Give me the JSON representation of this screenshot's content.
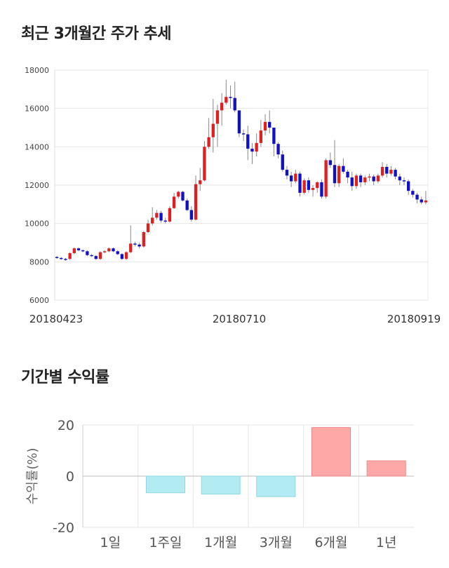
{
  "sections": {
    "price_title": "최근 3개월간 주가 추세",
    "return_title": "기간별 수익률"
  },
  "colors": {
    "up": "#e02020",
    "down": "#1010c8",
    "wick": "#888888",
    "grid": "#e6e6e6",
    "bar_pos": "#ffa8a8",
    "bar_pos_border": "#f08a8a",
    "bar_neg": "#b2ebf2",
    "bar_neg_border": "#8fd8e4"
  },
  "chart_data": [
    {
      "type": "candlestick",
      "title": "최근 3개월간 주가 추세",
      "ylim": [
        6000,
        18000
      ],
      "yticks": [
        "6000",
        "8000",
        "10000",
        "12000",
        "14000",
        "16000",
        "18000"
      ],
      "xticks": [
        "20180423",
        "20180710",
        "20180919"
      ],
      "grid": true,
      "series": [
        [
          8250,
          8200,
          8300,
          8150
        ],
        [
          8200,
          8150,
          8250,
          8100
        ],
        [
          8150,
          8100,
          8200,
          8050
        ],
        [
          8150,
          8450,
          8500,
          8100
        ],
        [
          8450,
          8700,
          8750,
          8400
        ],
        [
          8700,
          8600,
          8750,
          8550
        ],
        [
          8600,
          8550,
          8650,
          8500
        ],
        [
          8550,
          8350,
          8600,
          8300
        ],
        [
          8350,
          8300,
          8400,
          8250
        ],
        [
          8300,
          8150,
          8350,
          8100
        ],
        [
          8150,
          8500,
          8550,
          8100
        ],
        [
          8500,
          8550,
          8600,
          8450
        ],
        [
          8550,
          8700,
          8750,
          8500
        ],
        [
          8700,
          8550,
          8750,
          8500
        ],
        [
          8550,
          8400,
          8600,
          8350
        ],
        [
          8400,
          8150,
          8450,
          8100
        ],
        [
          8150,
          8500,
          8550,
          8100
        ],
        [
          8500,
          8950,
          9900,
          8450
        ],
        [
          8950,
          8900,
          9050,
          8800
        ],
        [
          8900,
          8800,
          9000,
          8700
        ],
        [
          8800,
          9550,
          9600,
          8750
        ],
        [
          9550,
          10000,
          10200,
          9500
        ],
        [
          10000,
          10300,
          10850,
          9900
        ],
        [
          10300,
          10550,
          10700,
          10200
        ],
        [
          10550,
          10150,
          10650,
          10050
        ],
        [
          10150,
          10100,
          10300,
          10000
        ],
        [
          10100,
          10800,
          10900,
          10050
        ],
        [
          10800,
          11400,
          11600,
          10750
        ],
        [
          11400,
          11650,
          11700,
          11300
        ],
        [
          11650,
          11200,
          11700,
          11150
        ],
        [
          11200,
          10700,
          11300,
          10650
        ],
        [
          10700,
          10200,
          10900,
          10100
        ],
        [
          10200,
          12050,
          12500,
          10150
        ],
        [
          12050,
          12250,
          12900,
          11700
        ],
        [
          12250,
          14000,
          14300,
          12200
        ],
        [
          14000,
          14500,
          15500,
          13900
        ],
        [
          14500,
          15200,
          16500,
          13700
        ],
        [
          15200,
          15900,
          16200,
          14000
        ],
        [
          15900,
          16300,
          16800,
          15100
        ],
        [
          16300,
          16600,
          17500,
          16200
        ],
        [
          16600,
          16550,
          17200,
          16000
        ],
        [
          16550,
          15900,
          17400,
          15800
        ],
        [
          15900,
          14700,
          15900,
          14500
        ],
        [
          14700,
          14650,
          14900,
          14300
        ],
        [
          14650,
          13900,
          15100,
          13300
        ],
        [
          13900,
          13750,
          14200,
          13100
        ],
        [
          13750,
          14200,
          14700,
          13500
        ],
        [
          14200,
          14850,
          15400,
          14000
        ],
        [
          14850,
          15300,
          15700,
          14600
        ],
        [
          15300,
          15000,
          15900,
          14700
        ],
        [
          15000,
          14150,
          15000,
          13500
        ],
        [
          14150,
          13600,
          14250,
          13400
        ],
        [
          13600,
          12800,
          13800,
          12700
        ],
        [
          12800,
          12500,
          13000,
          12300
        ],
        [
          12500,
          12200,
          12700,
          11900
        ],
        [
          12200,
          12600,
          12800,
          12100
        ],
        [
          12600,
          11600,
          12700,
          11400
        ],
        [
          11600,
          12250,
          12350,
          11500
        ],
        [
          12250,
          11750,
          12400,
          11600
        ],
        [
          11750,
          11850,
          12000,
          11400
        ],
        [
          11850,
          12150,
          12200,
          11600
        ],
        [
          12150,
          11400,
          12300,
          11300
        ],
        [
          11400,
          13300,
          13400,
          11300
        ],
        [
          13300,
          13050,
          13700,
          12900
        ],
        [
          13050,
          12100,
          14350,
          11900
        ],
        [
          12100,
          13000,
          13100,
          11900
        ],
        [
          13000,
          12700,
          13400,
          12600
        ],
        [
          12700,
          12400,
          12800,
          12100
        ],
        [
          12400,
          11950,
          12700,
          11700
        ],
        [
          11950,
          12500,
          12600,
          11800
        ],
        [
          12500,
          12150,
          12600,
          11900
        ],
        [
          12150,
          12400,
          12500,
          12000
        ],
        [
          12400,
          12450,
          12600,
          12200
        ],
        [
          12450,
          12200,
          12550,
          12000
        ],
        [
          12200,
          12500,
          12600,
          12100
        ],
        [
          12500,
          12950,
          13200,
          12400
        ],
        [
          12950,
          12600,
          13100,
          12400
        ],
        [
          12600,
          12800,
          13000,
          12500
        ],
        [
          12800,
          12450,
          12900,
          12300
        ],
        [
          12450,
          12250,
          12600,
          12000
        ],
        [
          12250,
          12200,
          12400,
          12000
        ],
        [
          12200,
          11700,
          12300,
          11500
        ],
        [
          11700,
          11500,
          11800,
          11350
        ],
        [
          11500,
          11250,
          11600,
          11050
        ],
        [
          11250,
          11100,
          11400,
          11000
        ],
        [
          11100,
          11200,
          11700,
          11000
        ]
      ]
    },
    {
      "type": "bar",
      "title": "기간별 수익률",
      "ylabel": "수익률(%)",
      "ylim": [
        -20,
        20
      ],
      "yticks": [
        "-20",
        "0",
        "20"
      ],
      "categories": [
        "1일",
        "1주일",
        "1개월",
        "3개월",
        "6개월",
        "1년"
      ],
      "values": [
        0,
        -6.5,
        -7,
        -8,
        19,
        6
      ],
      "grid": true
    }
  ]
}
